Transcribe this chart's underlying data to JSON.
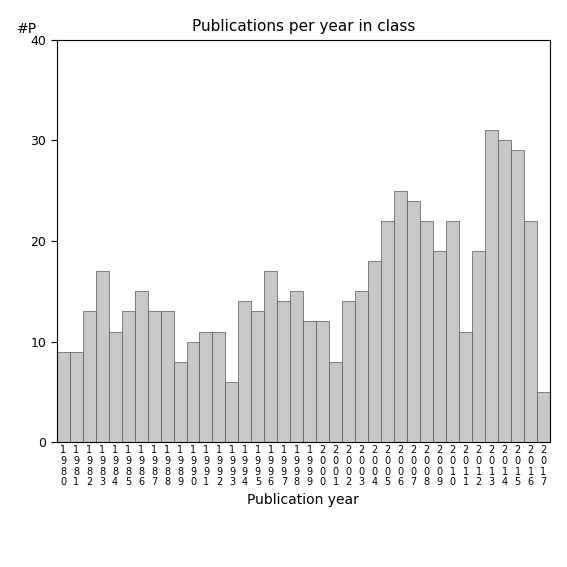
{
  "title": "Publications per year in class",
  "xlabel": "Publication year",
  "ylabel": "#P",
  "ylim": [
    0,
    40
  ],
  "yticks": [
    0,
    10,
    20,
    30,
    40
  ],
  "bar_color": "#c8c8c8",
  "bar_edgecolor": "#555555",
  "years": [
    1980,
    1981,
    1982,
    1983,
    1984,
    1985,
    1986,
    1987,
    1988,
    1989,
    1990,
    1991,
    1992,
    1993,
    1994,
    1995,
    1996,
    1997,
    1998,
    1999,
    2000,
    2001,
    2002,
    2003,
    2004,
    2005,
    2006,
    2007,
    2008,
    2009,
    2010,
    2011,
    2012,
    2013,
    2014,
    2015,
    2016,
    2017
  ],
  "values": [
    9,
    9,
    13,
    17,
    11,
    13,
    15,
    13,
    13,
    8,
    10,
    11,
    11,
    6,
    14,
    13,
    17,
    14,
    15,
    12,
    12,
    8,
    14,
    15,
    18,
    22,
    25,
    24,
    22,
    19,
    22,
    11,
    19,
    31,
    30,
    29,
    22,
    5
  ],
  "title_fontsize": 11,
  "label_fontsize": 10,
  "tick_fontsize": 9,
  "xtick_fontsize": 7
}
